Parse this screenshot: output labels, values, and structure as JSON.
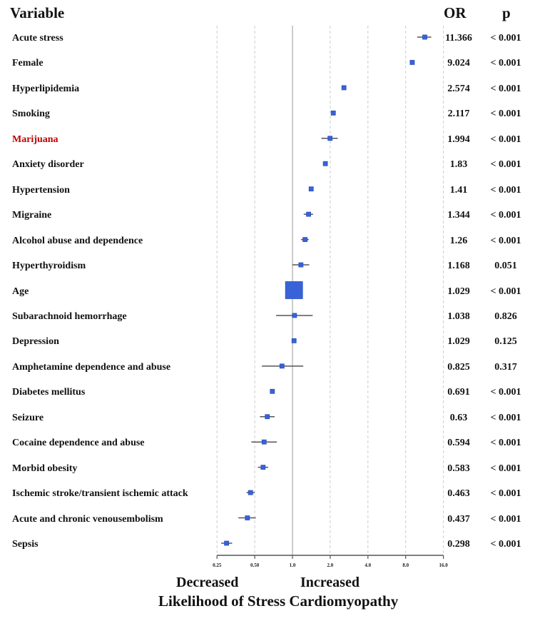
{
  "chart_data": {
    "type": "forest",
    "title": "Likelihood of Stress Cardiomyopathy",
    "xlabel_left": "Decreased",
    "xlabel_right": "Increased",
    "headers": {
      "variable": "Variable",
      "or": "OR",
      "p": "p"
    },
    "x_scale": "log2",
    "xlim": [
      0.25,
      16.0
    ],
    "x_ticks": [
      "0.25",
      "0.50",
      "1.0",
      "2.0",
      "4.0",
      "8.0",
      "16.0"
    ],
    "x_tick_values": [
      0.25,
      0.5,
      1,
      2,
      4,
      8,
      16
    ],
    "reference_line": 1.0,
    "grid": "dashed vertical",
    "marker_color": "#3a62d8",
    "highlight_color": "#c00000",
    "rows": [
      {
        "variable": "Acute stress",
        "or": 11.366,
        "or_text": "11.366",
        "p": "< 0.001",
        "ci": [
          9.9,
          12.8
        ]
      },
      {
        "variable": "Female",
        "or": 9.024,
        "or_text": "9.024",
        "p": "< 0.001",
        "ci": [
          8.7,
          9.4
        ]
      },
      {
        "variable": "Hyperlipidemia",
        "or": 2.574,
        "or_text": "2.574",
        "p": "< 0.001",
        "ci": [
          2.5,
          2.65
        ]
      },
      {
        "variable": "Smoking",
        "or": 2.117,
        "or_text": "2.117",
        "p": "< 0.001",
        "ci": [
          2.06,
          2.18
        ]
      },
      {
        "variable": "Marijuana",
        "or": 1.994,
        "or_text": "1.994",
        "p": "< 0.001",
        "ci": [
          1.7,
          2.3
        ],
        "highlight": true
      },
      {
        "variable": "Anxiety disorder",
        "or": 1.83,
        "or_text": "1.83",
        "p": "< 0.001",
        "ci": [
          1.78,
          1.88
        ]
      },
      {
        "variable": "Hypertension",
        "or": 1.41,
        "or_text": "1.41",
        "p": "< 0.001",
        "ci": [
          1.37,
          1.45
        ]
      },
      {
        "variable": "Migraine",
        "or": 1.344,
        "or_text": "1.344",
        "p": "< 0.001",
        "ci": [
          1.23,
          1.46
        ]
      },
      {
        "variable": "Alcohol abuse and dependence",
        "or": 1.26,
        "or_text": "1.26",
        "p": "< 0.001",
        "ci": [
          1.17,
          1.35
        ]
      },
      {
        "variable": "Hyperthyroidism",
        "or": 1.168,
        "or_text": "1.168",
        "p": "0.051",
        "ci": [
          1.0,
          1.36
        ]
      },
      {
        "variable": "Age",
        "or": 1.029,
        "or_text": "1.029",
        "p": "< 0.001",
        "ci": [
          1.028,
          1.03
        ],
        "weight": "large"
      },
      {
        "variable": "Subarachnoid hemorrhage",
        "or": 1.038,
        "or_text": "1.038",
        "p": "0.826",
        "ci": [
          0.74,
          1.45
        ]
      },
      {
        "variable": "Depression",
        "or": 1.029,
        "or_text": "1.029",
        "p": "0.125",
        "ci": [
          1.0,
          1.06
        ]
      },
      {
        "variable": "Amphetamine dependence and abuse",
        "or": 0.825,
        "or_text": "0.825",
        "p": "0.317",
        "ci": [
          0.57,
          1.22
        ]
      },
      {
        "variable": "Diabetes mellitus",
        "or": 0.691,
        "or_text": "0.691",
        "p": "< 0.001",
        "ci": [
          0.67,
          0.71
        ]
      },
      {
        "variable": "Seizure",
        "or": 0.63,
        "or_text": "0.63",
        "p": "< 0.001",
        "ci": [
          0.55,
          0.72
        ]
      },
      {
        "variable": "Cocaine dependence and abuse",
        "or": 0.594,
        "or_text": "0.594",
        "p": "< 0.001",
        "ci": [
          0.47,
          0.75
        ]
      },
      {
        "variable": "Morbid obesity",
        "or": 0.583,
        "or_text": "0.583",
        "p": "< 0.001",
        "ci": [
          0.53,
          0.64
        ]
      },
      {
        "variable": "Ischemic stroke/transient ischemic attack",
        "or": 0.463,
        "or_text": "0.463",
        "p": "< 0.001",
        "ci": [
          0.43,
          0.5
        ]
      },
      {
        "variable": "Acute and chronic venousembolism",
        "or": 0.437,
        "or_text": "0.437",
        "p": "< 0.001",
        "ci": [
          0.37,
          0.51
        ]
      },
      {
        "variable": "Sepsis",
        "or": 0.298,
        "or_text": "0.298",
        "p": "< 0.001",
        "ci": [
          0.27,
          0.33
        ]
      }
    ]
  }
}
